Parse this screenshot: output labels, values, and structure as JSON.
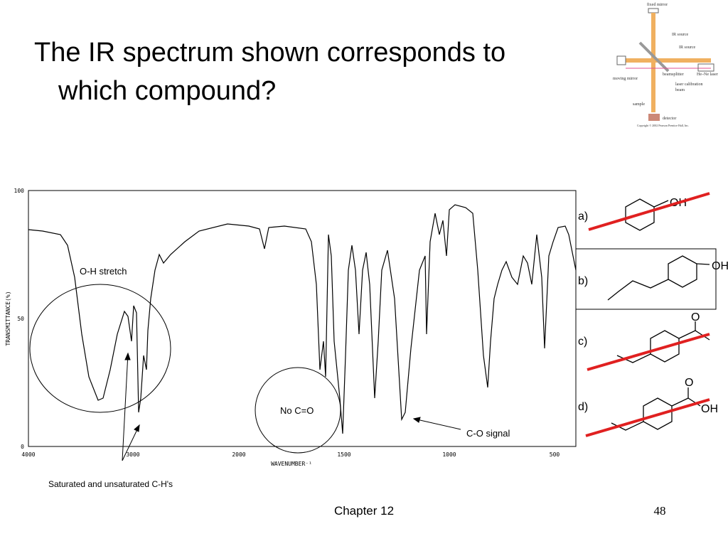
{
  "header": {
    "title_line1": "The IR spectrum shown corresponds to",
    "title_line2": "which compound?"
  },
  "diagram": {
    "labels": [
      "fixed mirror",
      "IR source",
      "IR source",
      "moving mirror",
      "beamsplitter",
      "He–Ne laser",
      "laser calibration",
      "beam",
      "sample",
      "detector",
      "Copyright © 2002 Pearson Prentice Hall, Inc."
    ]
  },
  "spectrum": {
    "y_axis_label": "TRANSMITTANCE(%)",
    "x_axis_label": "WAVENUMBER⁻¹",
    "yticks": [
      "100",
      "50",
      "0"
    ],
    "xticks": [
      "4000",
      "3000",
      "2000",
      "1500",
      "1000",
      "500"
    ]
  },
  "annotations": {
    "oh_stretch": "O-H stretch",
    "no_co": "No C=O",
    "co_signal": "C-O signal",
    "ch": "Saturated and unsaturated C-H's"
  },
  "options": [
    {
      "letter": "a)",
      "group": "OH"
    },
    {
      "letter": "b)",
      "group": "OH"
    },
    {
      "letter": "c)",
      "group": "O"
    },
    {
      "letter": "d)",
      "group": "O",
      "group2": "OH"
    }
  ],
  "footer": {
    "chapter": "Chapter 12",
    "page": "48"
  }
}
